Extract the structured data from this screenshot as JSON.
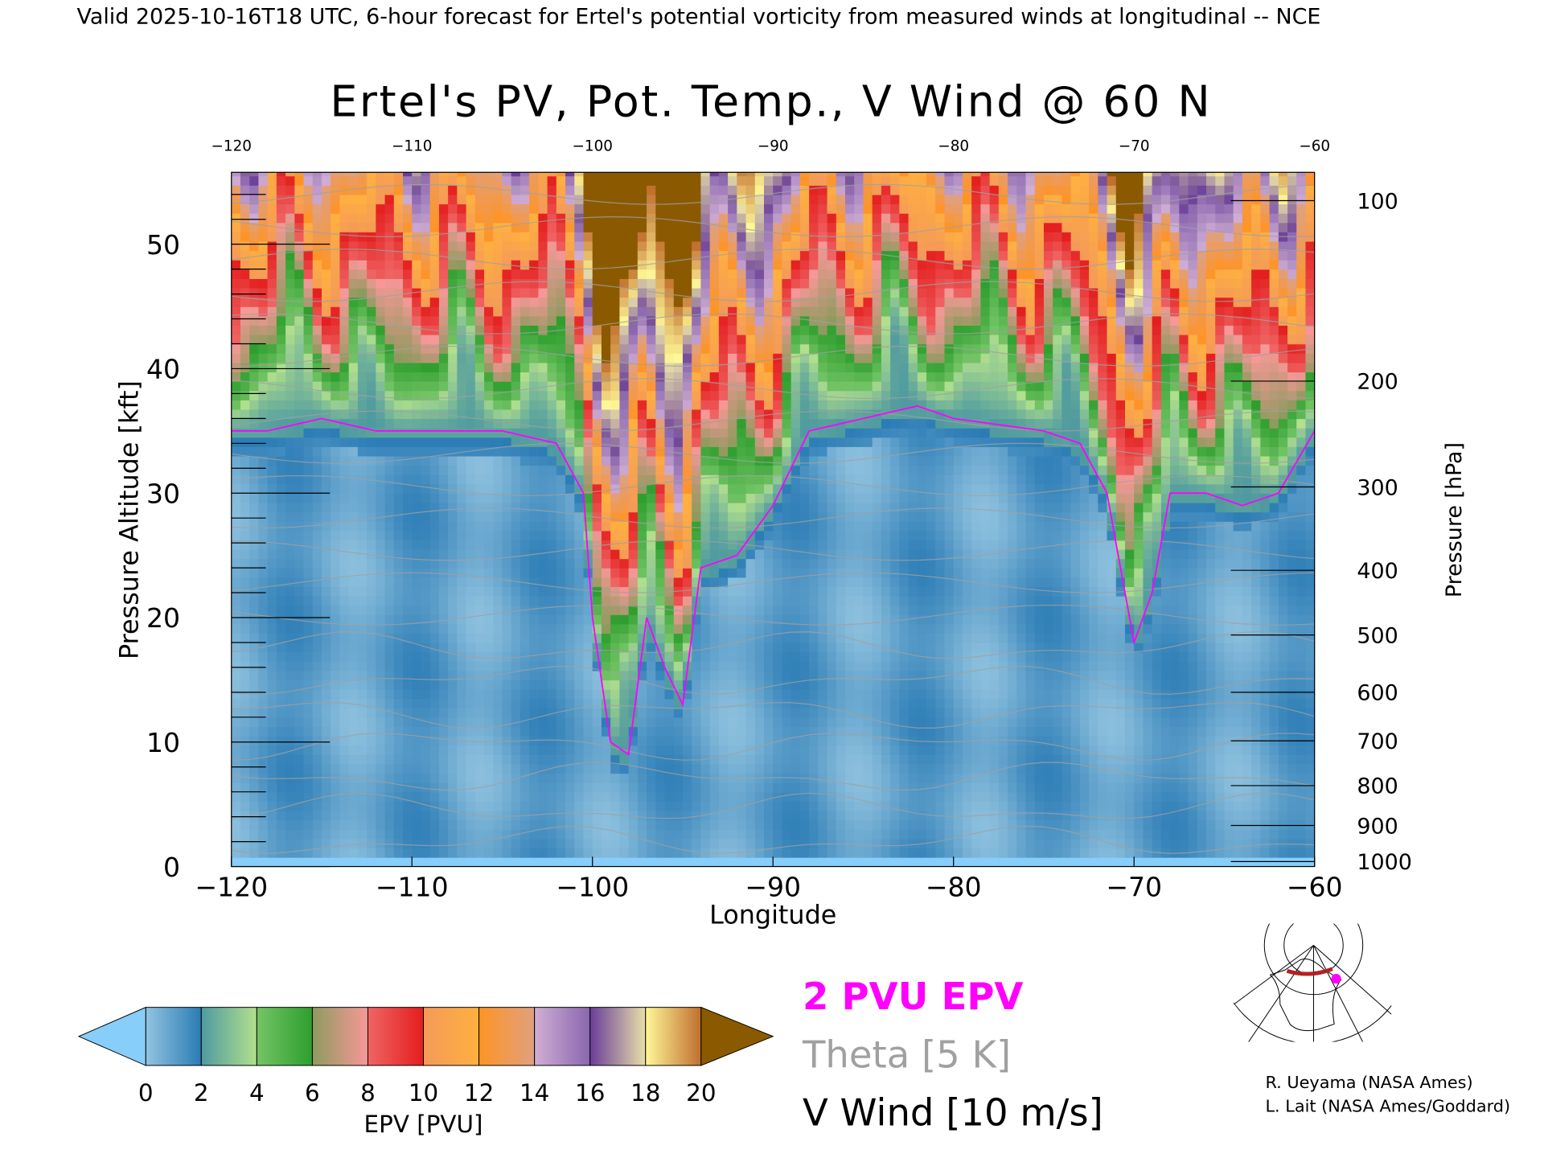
{
  "header": {
    "caption": "Valid 2025-10-16T18 UTC, 6-hour forecast for Ertel's potential vorticity from measured winds at longitudinal -- NCE"
  },
  "chart_data": {
    "type": "heatmap",
    "title": "Ertel's PV, Pot. Temp., V Wind @ 60 N",
    "xlabel": "Longitude",
    "ylabel": "Pressure Altitude [kft]",
    "y2label": "Pressure [hPa]",
    "xlim": [
      -120,
      -60
    ],
    "ylim": [
      0,
      56
    ],
    "x_ticks": [
      "-120",
      "-110",
      "-100",
      "-90",
      "-80",
      "-70",
      "-60"
    ],
    "x_tick_values": [
      -120,
      -110,
      -100,
      -90,
      -80,
      -70,
      -60
    ],
    "y_ticks": [
      "0",
      "10",
      "20",
      "30",
      "40",
      "50"
    ],
    "y_tick_values": [
      0,
      10,
      20,
      30,
      40,
      50
    ],
    "pressure_ticks": [
      "100",
      "200",
      "300",
      "400",
      "500",
      "600",
      "700",
      "800",
      "900",
      "1000"
    ],
    "pressure_tick_kft": [
      53.5,
      39,
      30.5,
      23.8,
      18.6,
      14,
      10.1,
      6.5,
      3.3,
      0.4
    ],
    "tropopause_2pvu": {
      "lon": [
        -120,
        -118,
        -115,
        -112,
        -110,
        -105,
        -102,
        -100.5,
        -100,
        -99,
        -98,
        -97,
        -96,
        -95,
        -94,
        -92,
        -90,
        -88,
        -85,
        -82,
        -80,
        -75,
        -73,
        -71.5,
        -70,
        -69,
        -68,
        -66,
        -64,
        -62,
        -60
      ],
      "kft": [
        35,
        35,
        36,
        35,
        35,
        35,
        34,
        30,
        20,
        10,
        9,
        20,
        16,
        13,
        24,
        25,
        29,
        35,
        36,
        37,
        36,
        35,
        34,
        30,
        18,
        22,
        30,
        30,
        29,
        30,
        35
      ]
    },
    "colorbar": {
      "label": "EPV [PVU]",
      "ticks": [
        "0",
        "2",
        "4",
        "6",
        "8",
        "10",
        "12",
        "14",
        "16",
        "18",
        "20"
      ],
      "under_color": "#87cefa",
      "over_color": "#8b5a00",
      "segments": [
        [
          "#93c4e0",
          "#2a7bb5"
        ],
        [
          "#4f9aa0",
          "#b2e08c"
        ],
        [
          "#74c466",
          "#2e9e2e"
        ],
        [
          "#8e9a5e",
          "#f89898"
        ],
        [
          "#f06464",
          "#e41e1e"
        ],
        [
          "#f49a58",
          "#ffb040"
        ],
        [
          "#ff9424",
          "#e0a080"
        ],
        [
          "#d0aed4",
          "#8a66ae"
        ],
        [
          "#6a3d9a",
          "#e8e0a8"
        ],
        [
          "#fff898",
          "#c06e2e"
        ]
      ]
    },
    "legend": {
      "pv_label": "2 PVU EPV",
      "pv_color": "#ff00ff",
      "theta_label": "Theta [5 K]",
      "theta_color": "#a0a0a0",
      "wind_label": "V Wind [10 m/s]"
    }
  },
  "credits": [
    "R. Ueyama (NASA Ames)",
    "L. Lait (NASA Ames/Goddard)"
  ]
}
